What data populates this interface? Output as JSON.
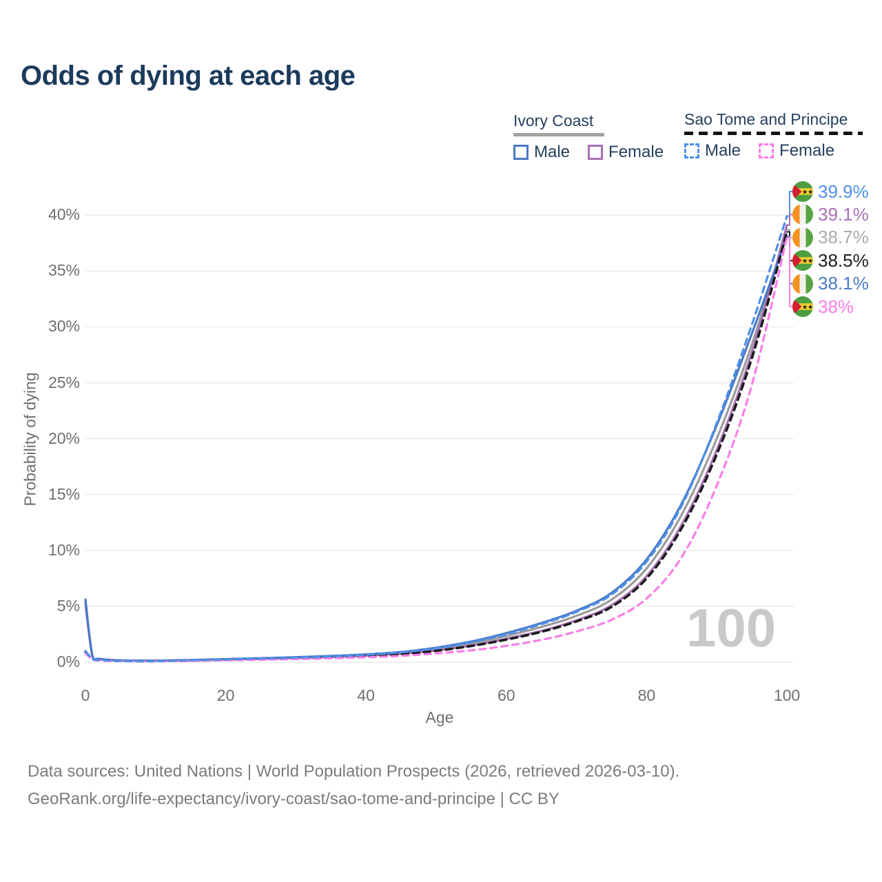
{
  "title": "Odds of dying at each age",
  "legend": {
    "groups": [
      {
        "name": "Ivory Coast",
        "line_style": "solid",
        "line_color": "#a3a3a3",
        "items": [
          {
            "label": "Male",
            "color": "#4a79c6",
            "dashed": false
          },
          {
            "label": "Female",
            "color": "#a86fb6",
            "dashed": false
          }
        ]
      },
      {
        "name": "Sao Tome and Principe",
        "line_style": "dashed",
        "line_color": "#141414",
        "items": [
          {
            "label": "Male",
            "color": "#4e90e8",
            "dashed": true
          },
          {
            "label": "Female",
            "color": "#fb7de9",
            "dashed": true
          }
        ]
      }
    ]
  },
  "chart_data": {
    "type": "line",
    "title": "Odds of dying at each age",
    "xlabel": "Age",
    "ylabel": "Probability of dying",
    "watermark": "100",
    "grid": true,
    "legend_position": "top-right",
    "xlim": [
      0,
      100
    ],
    "ylim": [
      0,
      41
    ],
    "xticks": [
      0,
      20,
      40,
      60,
      80,
      100
    ],
    "ytick_values": [
      0,
      5,
      10,
      15,
      20,
      25,
      30,
      35,
      40
    ],
    "ytick_labels": [
      "0%",
      "5%",
      "10%",
      "15%",
      "20%",
      "25%",
      "30%",
      "35%",
      "40%"
    ],
    "x_unit": "years of age",
    "y_unit": "percent probability of dying at that age",
    "series": [
      {
        "key": "ic-all",
        "country": "Ivory Coast",
        "sex": "all",
        "color": "#9b9b9b",
        "dashed": false,
        "points": [
          [
            0,
            5.4
          ],
          [
            1,
            0.53
          ],
          [
            2,
            0.29
          ],
          [
            5,
            0.15
          ],
          [
            10,
            0.13
          ],
          [
            15,
            0.18
          ],
          [
            20,
            0.26
          ],
          [
            25,
            0.34
          ],
          [
            30,
            0.42
          ],
          [
            35,
            0.52
          ],
          [
            40,
            0.65
          ],
          [
            45,
            0.85
          ],
          [
            50,
            1.18
          ],
          [
            55,
            1.68
          ],
          [
            60,
            2.35
          ],
          [
            65,
            3.15
          ],
          [
            70,
            4.15
          ],
          [
            75,
            5.6
          ],
          [
            80,
            8.4
          ],
          [
            85,
            13.2
          ],
          [
            90,
            20.0
          ],
          [
            95,
            28.4
          ],
          [
            100,
            38.7
          ]
        ]
      },
      {
        "key": "ic-female",
        "country": "Ivory Coast",
        "sex": "female",
        "color": "#a86fb6",
        "dashed": false,
        "points": [
          [
            0,
            5.2
          ],
          [
            1,
            0.5
          ],
          [
            2,
            0.27
          ],
          [
            5,
            0.14
          ],
          [
            10,
            0.12
          ],
          [
            15,
            0.16
          ],
          [
            20,
            0.23
          ],
          [
            25,
            0.3
          ],
          [
            30,
            0.38
          ],
          [
            35,
            0.47
          ],
          [
            40,
            0.59
          ],
          [
            45,
            0.77
          ],
          [
            50,
            1.05
          ],
          [
            55,
            1.5
          ],
          [
            60,
            2.1
          ],
          [
            65,
            2.8
          ],
          [
            70,
            3.75
          ],
          [
            75,
            5.1
          ],
          [
            80,
            7.7
          ],
          [
            85,
            12.3
          ],
          [
            90,
            19.0
          ],
          [
            95,
            27.7
          ],
          [
            100,
            39.1
          ]
        ]
      },
      {
        "key": "ic-male",
        "country": "Ivory Coast",
        "sex": "male",
        "color": "#4a79c6",
        "dashed": false,
        "points": [
          [
            0,
            5.6
          ],
          [
            1,
            0.55
          ],
          [
            2,
            0.3
          ],
          [
            5,
            0.16
          ],
          [
            10,
            0.14
          ],
          [
            15,
            0.2
          ],
          [
            20,
            0.28
          ],
          [
            25,
            0.36
          ],
          [
            30,
            0.45
          ],
          [
            35,
            0.56
          ],
          [
            40,
            0.7
          ],
          [
            45,
            0.92
          ],
          [
            50,
            1.3
          ],
          [
            55,
            1.85
          ],
          [
            60,
            2.6
          ],
          [
            65,
            3.5
          ],
          [
            70,
            4.6
          ],
          [
            75,
            6.2
          ],
          [
            80,
            9.2
          ],
          [
            85,
            14.2
          ],
          [
            90,
            21.2
          ],
          [
            95,
            29.4
          ],
          [
            100,
            38.1
          ]
        ]
      },
      {
        "key": "stp-all",
        "country": "Sao Tome and Principe",
        "sex": "all",
        "color": "#1c1c1c",
        "dashed": true,
        "points": [
          [
            0,
            0.9
          ],
          [
            1,
            0.28
          ],
          [
            2,
            0.18
          ],
          [
            5,
            0.11
          ],
          [
            10,
            0.1
          ],
          [
            15,
            0.14
          ],
          [
            20,
            0.21
          ],
          [
            25,
            0.28
          ],
          [
            30,
            0.35
          ],
          [
            35,
            0.44
          ],
          [
            40,
            0.56
          ],
          [
            45,
            0.74
          ],
          [
            50,
            1.02
          ],
          [
            55,
            1.45
          ],
          [
            60,
            2.02
          ],
          [
            65,
            2.72
          ],
          [
            70,
            3.65
          ],
          [
            75,
            4.95
          ],
          [
            80,
            7.5
          ],
          [
            85,
            12.0
          ],
          [
            90,
            18.6
          ],
          [
            95,
            27.2
          ],
          [
            100,
            38.5
          ]
        ]
      },
      {
        "key": "stp-female",
        "country": "Sao Tome and Principe",
        "sex": "female",
        "color": "#fb7de9",
        "dashed": true,
        "points": [
          [
            0,
            0.8
          ],
          [
            1,
            0.26
          ],
          [
            2,
            0.16
          ],
          [
            5,
            0.1
          ],
          [
            10,
            0.09
          ],
          [
            15,
            0.12
          ],
          [
            20,
            0.17
          ],
          [
            25,
            0.22
          ],
          [
            30,
            0.28
          ],
          [
            35,
            0.35
          ],
          [
            40,
            0.44
          ],
          [
            45,
            0.57
          ],
          [
            50,
            0.78
          ],
          [
            55,
            1.06
          ],
          [
            60,
            1.46
          ],
          [
            65,
            2.0
          ],
          [
            70,
            2.75
          ],
          [
            75,
            3.8
          ],
          [
            80,
            5.7
          ],
          [
            85,
            9.4
          ],
          [
            90,
            15.8
          ],
          [
            95,
            24.8
          ],
          [
            100,
            38.0
          ]
        ]
      },
      {
        "key": "stp-male",
        "country": "Sao Tome and Principe",
        "sex": "male",
        "color": "#4e90e8",
        "dashed": true,
        "points": [
          [
            0,
            1.0
          ],
          [
            1,
            0.3
          ],
          [
            2,
            0.2
          ],
          [
            5,
            0.12
          ],
          [
            10,
            0.11
          ],
          [
            15,
            0.17
          ],
          [
            20,
            0.25
          ],
          [
            25,
            0.33
          ],
          [
            30,
            0.41
          ],
          [
            35,
            0.52
          ],
          [
            40,
            0.66
          ],
          [
            45,
            0.88
          ],
          [
            50,
            1.24
          ],
          [
            55,
            1.78
          ],
          [
            60,
            2.5
          ],
          [
            65,
            3.4
          ],
          [
            70,
            4.5
          ],
          [
            75,
            6.05
          ],
          [
            80,
            9.0
          ],
          [
            85,
            14.0
          ],
          [
            90,
            21.4
          ],
          [
            95,
            30.2
          ],
          [
            100,
            39.9
          ]
        ]
      }
    ]
  },
  "end_labels": [
    {
      "series": "stp-male",
      "flag": "stp",
      "text": "39.9%",
      "color": "#4e90e8"
    },
    {
      "series": "ic-female",
      "flag": "civ",
      "text": "39.1%",
      "color": "#a86fb6"
    },
    {
      "series": "ic-all",
      "flag": "civ",
      "text": "38.7%",
      "color": "#aaaaaa"
    },
    {
      "series": "stp-all",
      "flag": "stp",
      "text": "38.5%",
      "color": "#1c1c1c"
    },
    {
      "series": "ic-male",
      "flag": "civ",
      "text": "38.1%",
      "color": "#4a79c6"
    },
    {
      "series": "stp-female",
      "flag": "stp",
      "text": "38%",
      "color": "#fb7de9"
    }
  ],
  "flags": {
    "civ": {
      "name": "ivory-coast-flag",
      "orange": "#f49221",
      "white": "#f2f1ec",
      "green": "#57a445"
    },
    "stp": {
      "name": "sao-tome-and-principe-flag",
      "green": "#4d9e40",
      "yellow": "#f2ce33",
      "red": "#d22030",
      "star": "#111111"
    }
  },
  "footer": {
    "line1": "Data sources: United Nations | World Population Prospects (2026, retrieved 2026-03-10).",
    "line2": "GeoRank.org/life-expectancy/ivory-coast/sao-tome-and-principe | CC BY"
  }
}
